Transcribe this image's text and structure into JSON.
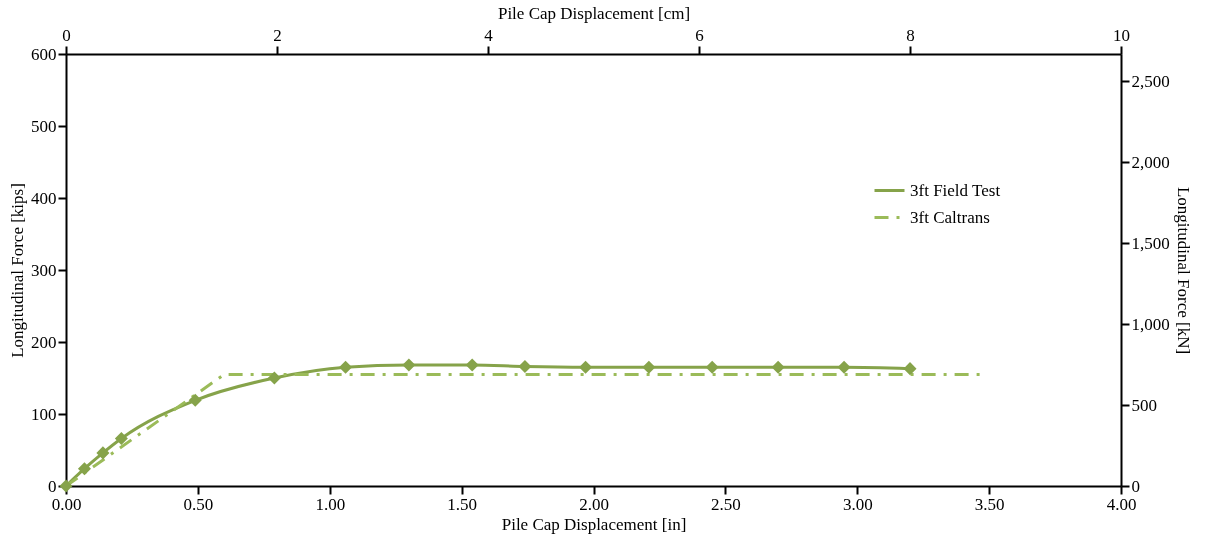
{
  "chart_data": {
    "type": "line",
    "xlabel": "Pile Cap Displacement [in]",
    "ylabel": "Longitudinal Force [kips]",
    "x2label": "Pile Cap Displacement [cm]",
    "y2label": "Longitudinal Force [kN]",
    "xlim": [
      0,
      4
    ],
    "xticks": [
      {
        "value": 0,
        "label": "0.00"
      },
      {
        "value": 0.5,
        "label": "0.50"
      },
      {
        "value": 1,
        "label": "1.00"
      },
      {
        "value": 1.5,
        "label": "1.50"
      },
      {
        "value": 2,
        "label": "2.00"
      },
      {
        "value": 2.5,
        "label": "2.50"
      },
      {
        "value": 3,
        "label": "3.00"
      },
      {
        "value": 3.5,
        "label": "3.50"
      },
      {
        "value": 4,
        "label": "4.00"
      }
    ],
    "ylim": [
      0,
      600
    ],
    "yticks": [
      0,
      100,
      200,
      300,
      400,
      500,
      600
    ],
    "x2lim": [
      0,
      10
    ],
    "x2ticks": [
      0,
      2,
      4,
      6,
      8,
      10
    ],
    "y2lim": [
      0,
      2669
    ],
    "y2ticks": [
      0,
      500,
      {
        "value": 1000,
        "label": "1,000"
      },
      {
        "value": 1500,
        "label": "1,500"
      },
      {
        "value": 2000,
        "label": "2,000"
      },
      {
        "value": 2500,
        "label": "2,500"
      }
    ],
    "grid": false,
    "legend": "top right",
    "series": [
      {
        "name": "3ft Field Test",
        "color": "#86a34a",
        "marker": "diamond",
        "line_style": "solid",
        "x": [
          0,
          0.07,
          0.14,
          0.21,
          0.49,
          0.79,
          1.06,
          1.3,
          1.54,
          1.74,
          1.97,
          2.21,
          2.45,
          2.7,
          2.95,
          3.2
        ],
        "values": [
          0,
          24,
          46,
          66,
          119,
          150,
          165,
          168,
          168,
          166,
          165,
          165,
          165,
          165,
          165,
          163
        ]
      },
      {
        "name": "3ft Caltrans",
        "color": "#9bbb59",
        "marker": "none",
        "line_style": "dashed",
        "x": [
          0,
          0.6,
          3.47
        ],
        "values": [
          0,
          155,
          155
        ]
      }
    ]
  }
}
